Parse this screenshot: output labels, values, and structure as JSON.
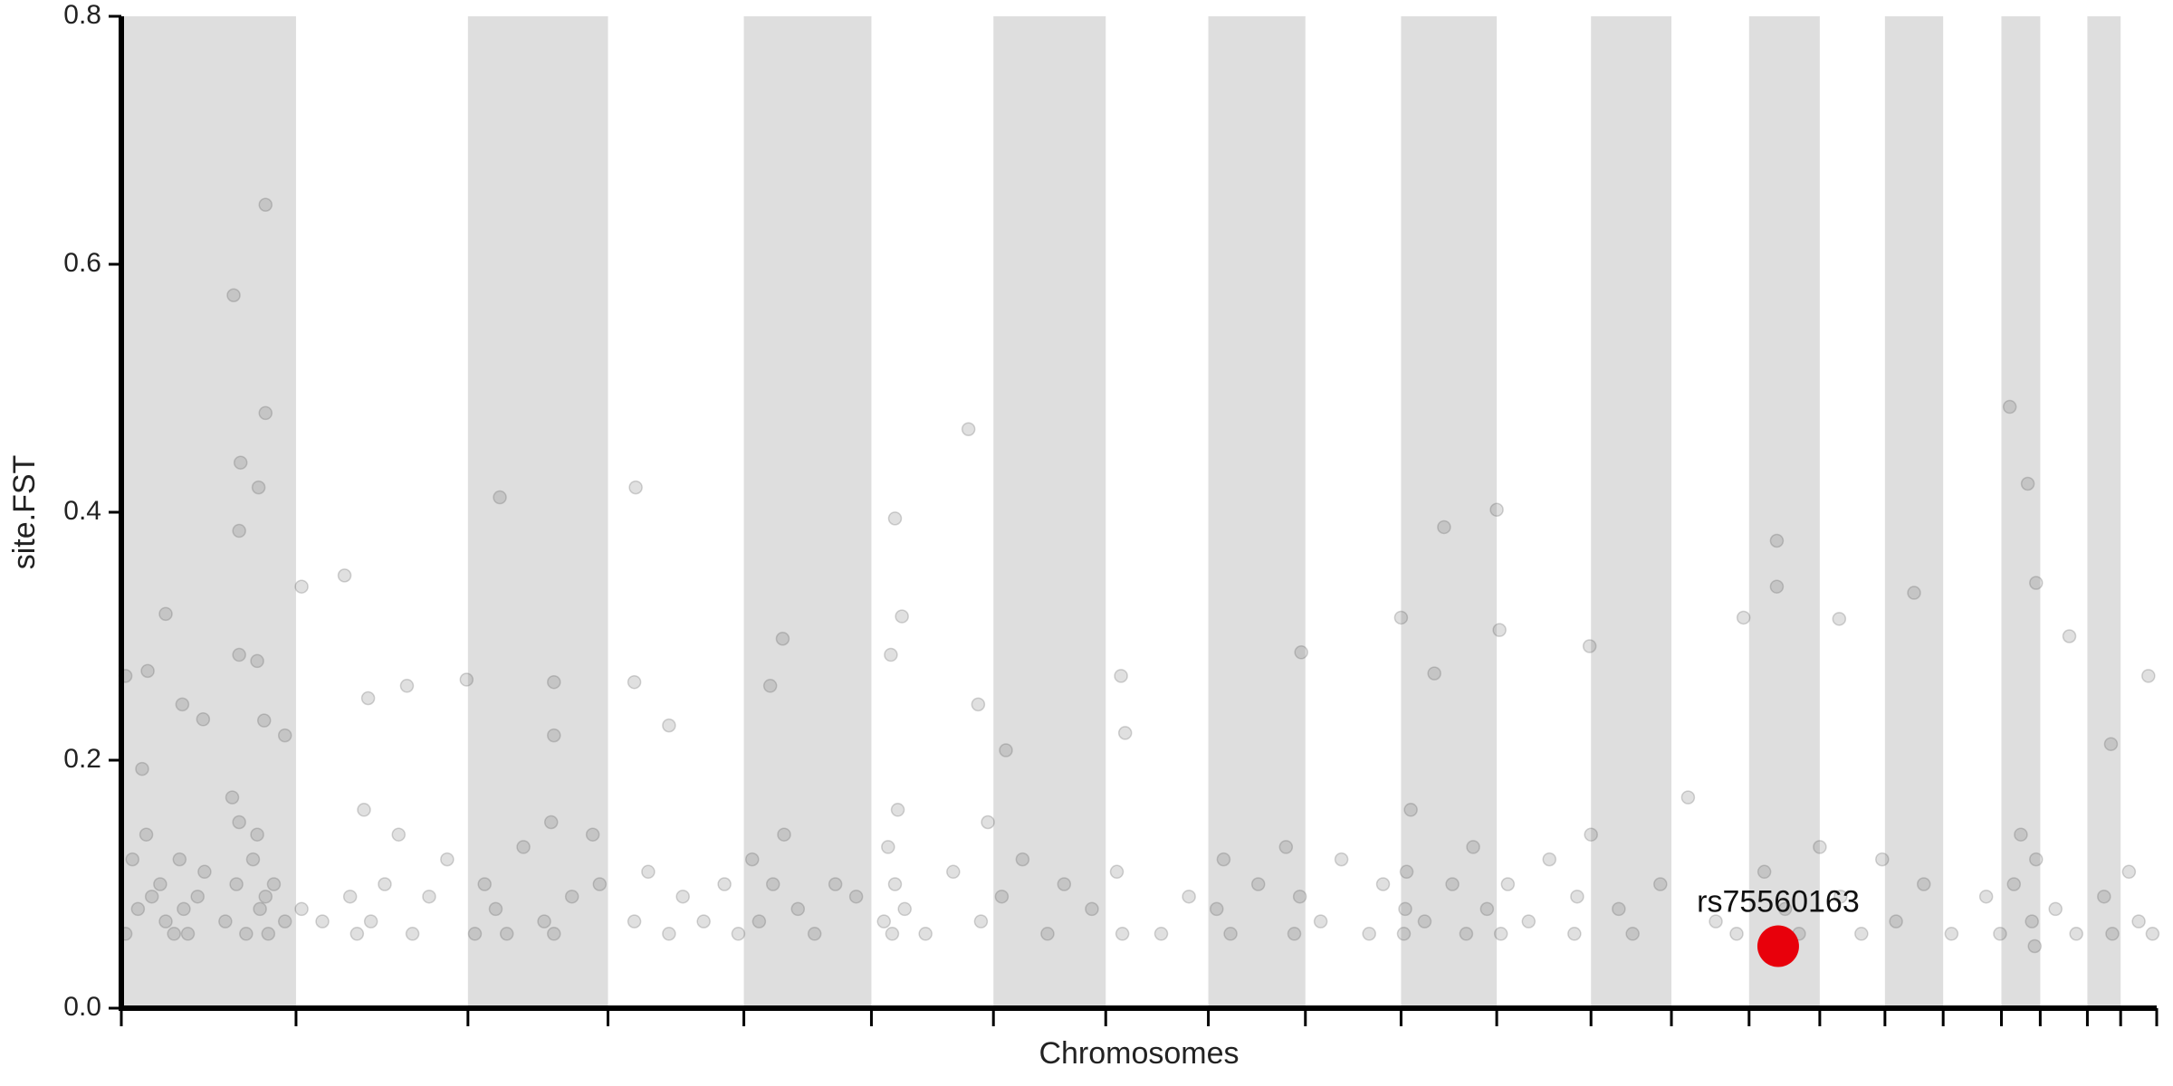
{
  "chart_data": {
    "type": "scatter",
    "y_label": "site.FST",
    "x_label": "Chromosomes",
    "xlim": [
      0,
      1468
    ],
    "xticks": [
      0,
      126,
      250,
      351,
      449,
      541,
      629,
      710,
      784,
      854,
      923,
      992,
      1060,
      1118,
      1174,
      1225,
      1272,
      1314,
      1356,
      1384,
      1418,
      1442,
      1468
    ],
    "ylim": [
      0,
      0.8
    ],
    "yticks": [
      {
        "value": 0,
        "label": "0.0"
      },
      0.2,
      0.4,
      0.6,
      0.8
    ],
    "color": "#555555",
    "band_color": "#dedede",
    "x": [
      81,
      104,
      104,
      86,
      99,
      85,
      32,
      85,
      98,
      3,
      19,
      44,
      59,
      15,
      103,
      118,
      130,
      161,
      178,
      206,
      249,
      273,
      312,
      312,
      371,
      370,
      395,
      477,
      468,
      558,
      563,
      555,
      611,
      618,
      638,
      721,
      724,
      851,
      923,
      954,
      992,
      994,
      947,
      1059,
      1194,
      1194,
      1170,
      1239,
      1293,
      1362,
      1375,
      1381,
      1405,
      1462,
      1435,
      3,
      8,
      12,
      18,
      22,
      28,
      32,
      38,
      42,
      45,
      48,
      55,
      60,
      75,
      80,
      83,
      85,
      90,
      95,
      98,
      100,
      104,
      106,
      110,
      118,
      130,
      145,
      165,
      170,
      175,
      180,
      190,
      200,
      210,
      222,
      235,
      255,
      262,
      270,
      278,
      290,
      305,
      310,
      312,
      325,
      340,
      345,
      370,
      380,
      395,
      405,
      420,
      435,
      445,
      455,
      460,
      470,
      478,
      488,
      500,
      515,
      530,
      550,
      553,
      556,
      558,
      560,
      565,
      580,
      600,
      620,
      625,
      635,
      650,
      668,
      680,
      700,
      722,
      718,
      750,
      770,
      790,
      795,
      800,
      820,
      840,
      846,
      850,
      865,
      880,
      900,
      910,
      925,
      926,
      927,
      930,
      940,
      960,
      970,
      975,
      985,
      995,
      1000,
      1015,
      1030,
      1048,
      1050,
      1060,
      1080,
      1090,
      1110,
      1130,
      1150,
      1165,
      1185,
      1200,
      1210,
      1225,
      1240,
      1255,
      1270,
      1280,
      1300,
      1320,
      1345,
      1355,
      1365,
      1370,
      1378,
      1380,
      1381,
      1395,
      1410,
      1430,
      1436,
      1448,
      1455,
      1465
    ],
    "values": [
      0.575,
      0.648,
      0.48,
      0.44,
      0.42,
      0.385,
      0.318,
      0.285,
      0.28,
      0.268,
      0.272,
      0.245,
      0.233,
      0.193,
      0.232,
      0.22,
      0.34,
      0.349,
      0.25,
      0.26,
      0.265,
      0.412,
      0.263,
      0.22,
      0.42,
      0.263,
      0.228,
      0.298,
      0.26,
      0.395,
      0.316,
      0.285,
      0.467,
      0.245,
      0.208,
      0.268,
      0.222,
      0.287,
      0.315,
      0.388,
      0.402,
      0.305,
      0.27,
      0.292,
      0.377,
      0.34,
      0.315,
      0.314,
      0.335,
      0.485,
      0.423,
      0.343,
      0.3,
      0.268,
      0.213,
      0.06,
      0.12,
      0.08,
      0.14,
      0.09,
      0.1,
      0.07,
      0.06,
      0.12,
      0.08,
      0.06,
      0.09,
      0.11,
      0.07,
      0.17,
      0.1,
      0.15,
      0.06,
      0.12,
      0.14,
      0.08,
      0.09,
      0.06,
      0.1,
      0.07,
      0.08,
      0.07,
      0.09,
      0.06,
      0.16,
      0.07,
      0.1,
      0.14,
      0.06,
      0.09,
      0.12,
      0.06,
      0.1,
      0.08,
      0.06,
      0.13,
      0.07,
      0.15,
      0.06,
      0.09,
      0.14,
      0.1,
      0.07,
      0.11,
      0.06,
      0.09,
      0.07,
      0.1,
      0.06,
      0.12,
      0.07,
      0.1,
      0.14,
      0.08,
      0.06,
      0.1,
      0.09,
      0.07,
      0.13,
      0.06,
      0.1,
      0.16,
      0.08,
      0.06,
      0.11,
      0.07,
      0.15,
      0.09,
      0.12,
      0.06,
      0.1,
      0.08,
      0.06,
      0.11,
      0.06,
      0.09,
      0.08,
      0.12,
      0.06,
      0.1,
      0.13,
      0.06,
      0.09,
      0.07,
      0.12,
      0.06,
      0.1,
      0.06,
      0.08,
      0.11,
      0.16,
      0.07,
      0.1,
      0.06,
      0.13,
      0.08,
      0.06,
      0.1,
      0.07,
      0.12,
      0.06,
      0.09,
      0.14,
      0.08,
      0.06,
      0.1,
      0.17,
      0.07,
      0.06,
      0.11,
      0.08,
      0.06,
      0.13,
      0.09,
      0.06,
      0.12,
      0.07,
      0.1,
      0.06,
      0.09,
      0.06,
      0.1,
      0.14,
      0.07,
      0.05,
      0.12,
      0.08,
      0.06,
      0.09,
      0.06,
      0.11,
      0.07,
      0.06
    ],
    "highlight": {
      "label": "rs75560163",
      "x": 1195,
      "value": 0.05,
      "color": "#e8000b"
    }
  }
}
